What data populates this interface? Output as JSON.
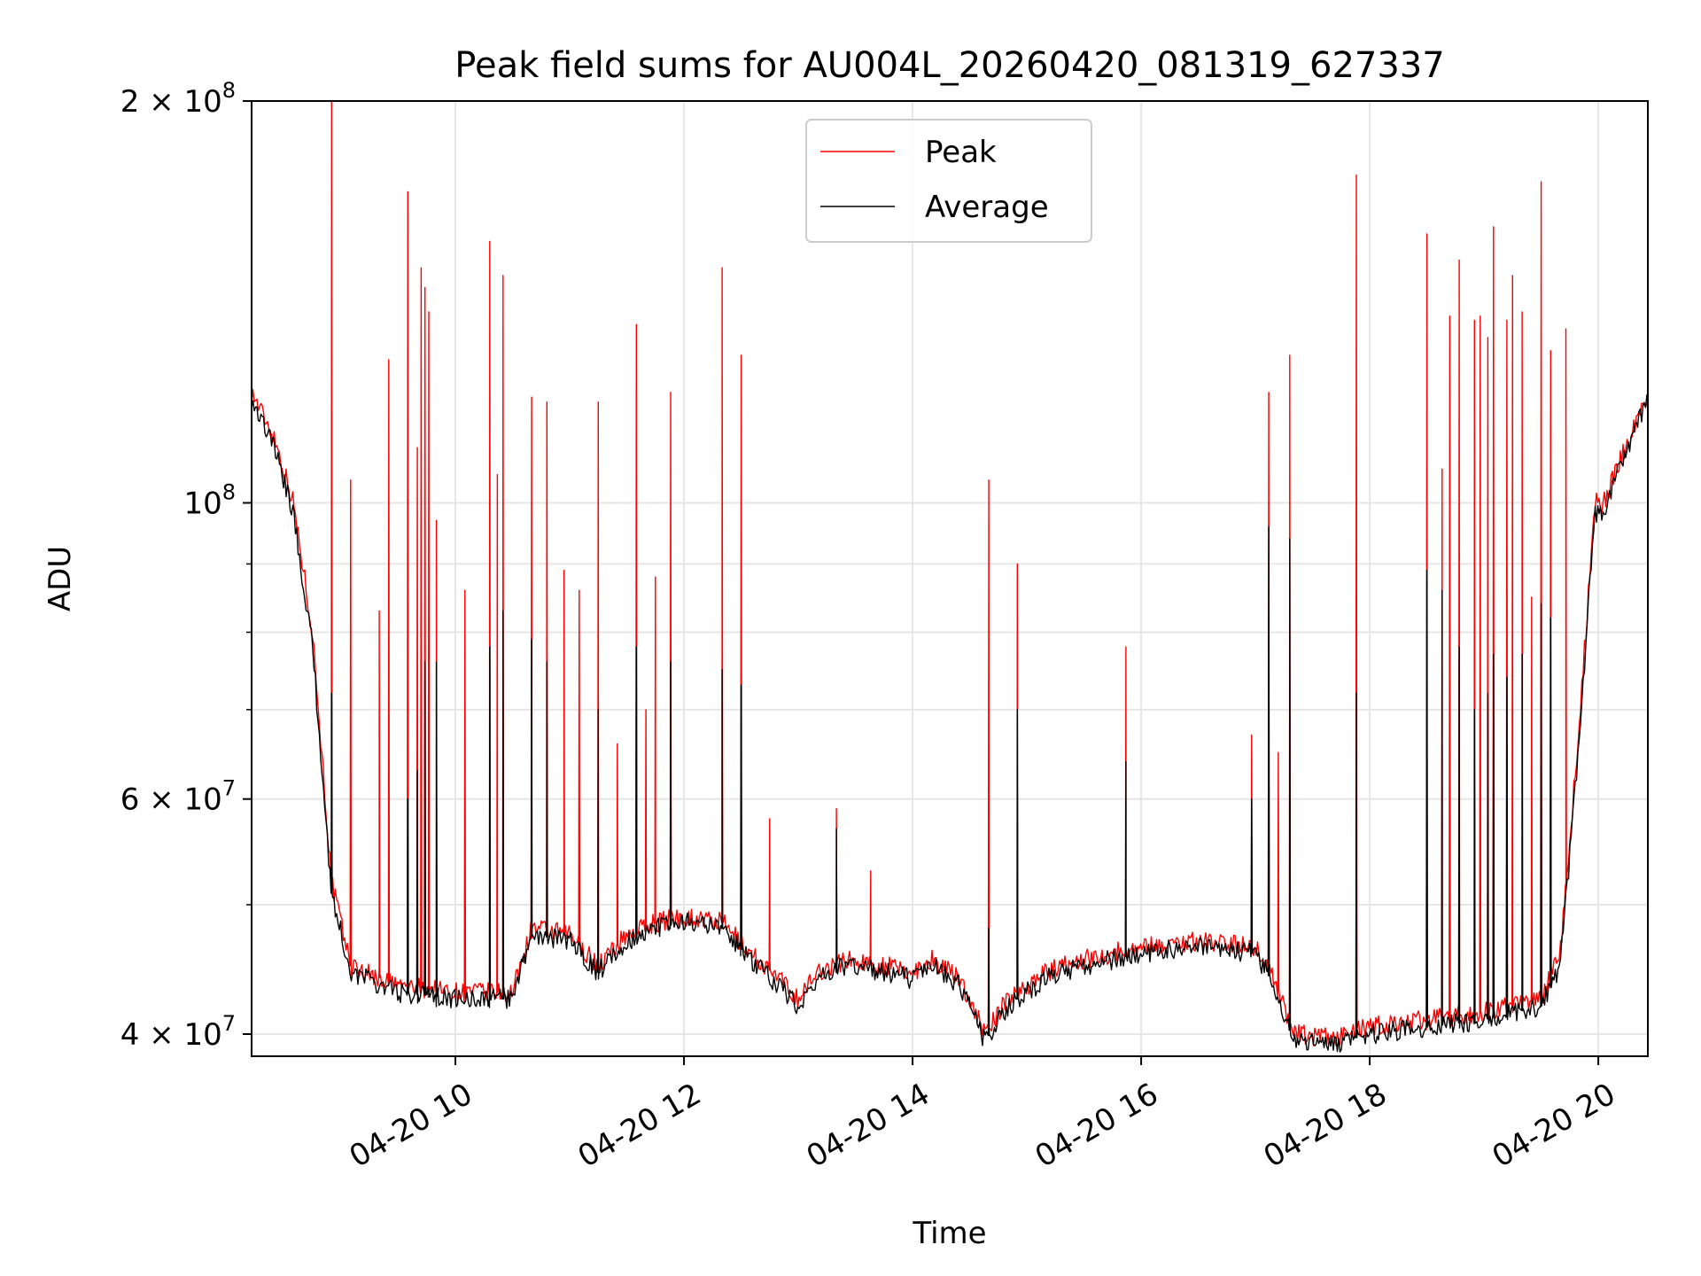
{
  "chart_data": {
    "type": "line",
    "title": "Peak field sums for AU004L_20260420_081319_627337",
    "xlabel": "Time",
    "ylabel": "ADU",
    "yscale": "log",
    "xlim": [
      "2026-04-20 08:13",
      "2026-04-20 20:26"
    ],
    "ylim": [
      38500000,
      200000000
    ],
    "grid": true,
    "legend_position": "top-center",
    "x_ticks": [
      {
        "value": "2026-04-20 10:00",
        "label": "04-20 10"
      },
      {
        "value": "2026-04-20 12:00",
        "label": "04-20 12"
      },
      {
        "value": "2026-04-20 14:00",
        "label": "04-20 14"
      },
      {
        "value": "2026-04-20 16:00",
        "label": "04-20 16"
      },
      {
        "value": "2026-04-20 18:00",
        "label": "04-20 18"
      },
      {
        "value": "2026-04-20 20:00",
        "label": "04-20 20"
      }
    ],
    "y_ticks": [
      {
        "value": 40000000,
        "mant": "4",
        "exp": "7"
      },
      {
        "value": 60000000,
        "mant": "6",
        "exp": "7"
      },
      {
        "value": 100000000,
        "mant": "",
        "exp": "8"
      },
      {
        "value": 200000000,
        "mant": "2",
        "exp": "8"
      }
    ],
    "y_minor_ticks": [
      50000000,
      70000000,
      80000000,
      90000000
    ],
    "series": [
      {
        "name": "Peak",
        "color": "#ff0000",
        "baseline": [
          [
            "2026-04-20 08:13",
            121000000
          ],
          [
            "2026-04-20 08:25",
            112000000
          ],
          [
            "2026-04-20 08:35",
            100000000
          ],
          [
            "2026-04-20 08:45",
            80000000
          ],
          [
            "2026-04-20 08:55",
            52000000
          ],
          [
            "2026-04-20 09:05",
            45000000
          ],
          [
            "2026-04-20 09:30",
            43500000
          ],
          [
            "2026-04-20 10:00",
            43000000
          ],
          [
            "2026-04-20 10:30",
            43000000
          ],
          [
            "2026-04-20 10:40",
            48000000
          ],
          [
            "2026-04-20 11:00",
            47500000
          ],
          [
            "2026-04-20 11:15",
            45000000
          ],
          [
            "2026-04-20 11:30",
            47500000
          ],
          [
            "2026-04-20 11:45",
            48500000
          ],
          [
            "2026-04-20 12:00",
            49000000
          ],
          [
            "2026-04-20 12:20",
            48500000
          ],
          [
            "2026-04-20 12:35",
            46000000
          ],
          [
            "2026-04-20 12:50",
            44000000
          ],
          [
            "2026-04-20 13:00",
            42500000
          ],
          [
            "2026-04-20 13:10",
            44500000
          ],
          [
            "2026-04-20 13:25",
            45500000
          ],
          [
            "2026-04-20 13:45",
            45000000
          ],
          [
            "2026-04-20 14:00",
            44500000
          ],
          [
            "2026-04-20 14:10",
            45500000
          ],
          [
            "2026-04-20 14:25",
            44000000
          ],
          [
            "2026-04-20 14:38",
            40000000
          ],
          [
            "2026-04-20 14:50",
            42500000
          ],
          [
            "2026-04-20 15:10",
            44500000
          ],
          [
            "2026-04-20 15:30",
            45500000
          ],
          [
            "2026-04-20 16:00",
            46500000
          ],
          [
            "2026-04-20 16:30",
            47000000
          ],
          [
            "2026-04-20 17:00",
            46500000
          ],
          [
            "2026-04-20 17:10",
            44000000
          ],
          [
            "2026-04-20 17:20",
            40000000
          ],
          [
            "2026-04-20 17:40",
            39700000
          ],
          [
            "2026-04-20 18:00",
            40500000
          ],
          [
            "2026-04-20 18:30",
            41000000
          ],
          [
            "2026-04-20 19:00",
            41500000
          ],
          [
            "2026-04-20 19:30",
            42500000
          ],
          [
            "2026-04-20 19:40",
            46000000
          ],
          [
            "2026-04-20 19:50",
            68000000
          ],
          [
            "2026-04-20 19:58",
            100000000
          ],
          [
            "2026-04-20 20:03",
            100000000
          ],
          [
            "2026-04-20 20:15",
            111000000
          ],
          [
            "2026-04-20 20:26",
            120000000
          ]
        ],
        "spikes": [
          [
            "2026-04-20 08:55",
            200000000
          ],
          [
            "2026-04-20 09:05",
            104000000
          ],
          [
            "2026-04-20 09:20",
            83000000
          ],
          [
            "2026-04-20 09:25",
            128000000
          ],
          [
            "2026-04-20 09:35",
            171000000
          ],
          [
            "2026-04-20 09:40",
            110000000
          ],
          [
            "2026-04-20 09:42",
            150000000
          ],
          [
            "2026-04-20 09:44",
            145000000
          ],
          [
            "2026-04-20 09:46",
            139000000
          ],
          [
            "2026-04-20 09:50",
            97000000
          ],
          [
            "2026-04-20 10:05",
            86000000
          ],
          [
            "2026-04-20 10:18",
            157000000
          ],
          [
            "2026-04-20 10:22",
            105000000
          ],
          [
            "2026-04-20 10:25",
            148000000
          ],
          [
            "2026-04-20 10:40",
            120000000
          ],
          [
            "2026-04-20 10:48",
            119000000
          ],
          [
            "2026-04-20 10:57",
            89000000
          ],
          [
            "2026-04-20 11:05",
            86000000
          ],
          [
            "2026-04-20 11:15",
            119000000
          ],
          [
            "2026-04-20 11:25",
            66000000
          ],
          [
            "2026-04-20 11:35",
            136000000
          ],
          [
            "2026-04-20 11:40",
            70000000
          ],
          [
            "2026-04-20 11:45",
            88000000
          ],
          [
            "2026-04-20 11:53",
            121000000
          ],
          [
            "2026-04-20 12:20",
            150000000
          ],
          [
            "2026-04-20 12:30",
            129000000
          ],
          [
            "2026-04-20 12:45",
            58000000
          ],
          [
            "2026-04-20 13:20",
            59000000
          ],
          [
            "2026-04-20 13:38",
            53000000
          ],
          [
            "2026-04-20 14:40",
            104000000
          ],
          [
            "2026-04-20 14:55",
            90000000
          ],
          [
            "2026-04-20 15:52",
            78000000
          ],
          [
            "2026-04-20 16:58",
            67000000
          ],
          [
            "2026-04-20 17:07",
            121000000
          ],
          [
            "2026-04-20 17:12",
            65000000
          ],
          [
            "2026-04-20 17:18",
            129000000
          ],
          [
            "2026-04-20 17:53",
            176000000
          ],
          [
            "2026-04-20 18:30",
            159000000
          ],
          [
            "2026-04-20 18:38",
            106000000
          ],
          [
            "2026-04-20 18:42",
            138000000
          ],
          [
            "2026-04-20 18:47",
            152000000
          ],
          [
            "2026-04-20 18:55",
            137000000
          ],
          [
            "2026-04-20 18:58",
            138000000
          ],
          [
            "2026-04-20 19:02",
            133000000
          ],
          [
            "2026-04-20 19:05",
            161000000
          ],
          [
            "2026-04-20 19:12",
            137000000
          ],
          [
            "2026-04-20 19:15",
            148000000
          ],
          [
            "2026-04-20 19:20",
            139000000
          ],
          [
            "2026-04-20 19:25",
            85000000
          ],
          [
            "2026-04-20 19:30",
            174000000
          ],
          [
            "2026-04-20 19:35",
            130000000
          ],
          [
            "2026-04-20 19:43",
            135000000
          ]
        ]
      },
      {
        "name": "Average",
        "color": "#000000",
        "baseline": [
          [
            "2026-04-20 08:13",
            120000000
          ],
          [
            "2026-04-20 08:25",
            110000000
          ],
          [
            "2026-04-20 08:35",
            98000000
          ],
          [
            "2026-04-20 08:45",
            78000000
          ],
          [
            "2026-04-20 08:55",
            51000000
          ],
          [
            "2026-04-20 09:05",
            44500000
          ],
          [
            "2026-04-20 09:30",
            43000000
          ],
          [
            "2026-04-20 10:00",
            42500000
          ],
          [
            "2026-04-20 10:30",
            42500000
          ],
          [
            "2026-04-20 10:40",
            47500000
          ],
          [
            "2026-04-20 11:00",
            47000000
          ],
          [
            "2026-04-20 11:15",
            44500000
          ],
          [
            "2026-04-20 11:30",
            47000000
          ],
          [
            "2026-04-20 11:45",
            48000000
          ],
          [
            "2026-04-20 12:00",
            48500000
          ],
          [
            "2026-04-20 12:20",
            48000000
          ],
          [
            "2026-04-20 12:35",
            45500000
          ],
          [
            "2026-04-20 12:50",
            43500000
          ],
          [
            "2026-04-20 13:00",
            42000000
          ],
          [
            "2026-04-20 13:10",
            44000000
          ],
          [
            "2026-04-20 13:25",
            45000000
          ],
          [
            "2026-04-20 13:45",
            44500000
          ],
          [
            "2026-04-20 14:00",
            44000000
          ],
          [
            "2026-04-20 14:10",
            45000000
          ],
          [
            "2026-04-20 14:25",
            43500000
          ],
          [
            "2026-04-20 14:38",
            39500000
          ],
          [
            "2026-04-20 14:50",
            42000000
          ],
          [
            "2026-04-20 15:10",
            44000000
          ],
          [
            "2026-04-20 15:30",
            45000000
          ],
          [
            "2026-04-20 16:00",
            46000000
          ],
          [
            "2026-04-20 16:30",
            46500000
          ],
          [
            "2026-04-20 17:00",
            46000000
          ],
          [
            "2026-04-20 17:10",
            43500000
          ],
          [
            "2026-04-20 17:20",
            39500000
          ],
          [
            "2026-04-20 17:40",
            39300000
          ],
          [
            "2026-04-20 18:00",
            40000000
          ],
          [
            "2026-04-20 18:30",
            40500000
          ],
          [
            "2026-04-20 19:00",
            41000000
          ],
          [
            "2026-04-20 19:30",
            42000000
          ],
          [
            "2026-04-20 19:40",
            45000000
          ],
          [
            "2026-04-20 19:50",
            66000000
          ],
          [
            "2026-04-20 19:58",
            98000000
          ],
          [
            "2026-04-20 20:03",
            99000000
          ],
          [
            "2026-04-20 20:15",
            110000000
          ],
          [
            "2026-04-20 20:26",
            119000000
          ]
        ],
        "spikes": [
          [
            "2026-04-20 08:55",
            72000000
          ],
          [
            "2026-04-20 09:35",
            60000000
          ],
          [
            "2026-04-20 09:40",
            63000000
          ],
          [
            "2026-04-20 09:44",
            76000000
          ],
          [
            "2026-04-20 09:50",
            76000000
          ],
          [
            "2026-04-20 10:18",
            78000000
          ],
          [
            "2026-04-20 10:25",
            83000000
          ],
          [
            "2026-04-20 10:40",
            79000000
          ],
          [
            "2026-04-20 10:48",
            76000000
          ],
          [
            "2026-04-20 11:15",
            70000000
          ],
          [
            "2026-04-20 11:35",
            78000000
          ],
          [
            "2026-04-20 11:53",
            76000000
          ],
          [
            "2026-04-20 12:20",
            75000000
          ],
          [
            "2026-04-20 12:30",
            73000000
          ],
          [
            "2026-04-20 13:20",
            57000000
          ],
          [
            "2026-04-20 14:40",
            48000000
          ],
          [
            "2026-04-20 14:55",
            70000000
          ],
          [
            "2026-04-20 15:52",
            64000000
          ],
          [
            "2026-04-20 16:58",
            60000000
          ],
          [
            "2026-04-20 17:07",
            96000000
          ],
          [
            "2026-04-20 17:18",
            94000000
          ],
          [
            "2026-04-20 17:53",
            72000000
          ],
          [
            "2026-04-20 18:30",
            89000000
          ],
          [
            "2026-04-20 18:38",
            86000000
          ],
          [
            "2026-04-20 18:47",
            78000000
          ],
          [
            "2026-04-20 18:55",
            70000000
          ],
          [
            "2026-04-20 19:02",
            72000000
          ],
          [
            "2026-04-20 19:05",
            77000000
          ],
          [
            "2026-04-20 19:12",
            74000000
          ],
          [
            "2026-04-20 19:20",
            77000000
          ],
          [
            "2026-04-20 19:30",
            84000000
          ],
          [
            "2026-04-20 19:35",
            82000000
          ]
        ]
      }
    ]
  }
}
